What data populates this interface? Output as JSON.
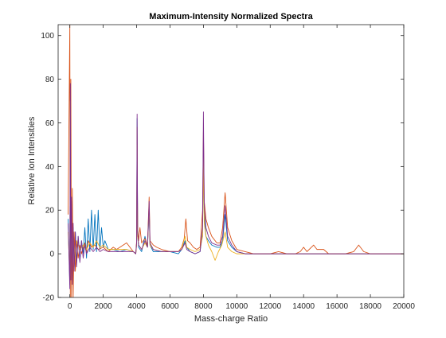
{
  "chart_data": {
    "type": "line",
    "title": "Maximum-Intensity Normalized Spectra",
    "xlabel": "Mass-charge Ratio",
    "ylabel": "Relative Ion Intensities",
    "xlim": [
      -700,
      20000
    ],
    "ylim": [
      -20,
      105
    ],
    "x_ticks": [
      0,
      2000,
      4000,
      6000,
      8000,
      10000,
      12000,
      14000,
      16000,
      18000,
      20000
    ],
    "y_ticks": [
      -20,
      0,
      20,
      40,
      60,
      80,
      100
    ],
    "grid": false,
    "legend": "none",
    "series": [
      {
        "color": "#0072BD",
        "points": [
          [
            -100,
            16
          ],
          [
            0,
            -14
          ],
          [
            30,
            75
          ],
          [
            60,
            -8
          ],
          [
            100,
            24
          ],
          [
            150,
            -12
          ],
          [
            200,
            12
          ],
          [
            260,
            -6
          ],
          [
            330,
            10
          ],
          [
            400,
            -4
          ],
          [
            500,
            8
          ],
          [
            600,
            -3
          ],
          [
            700,
            6
          ],
          [
            800,
            0
          ],
          [
            900,
            12
          ],
          [
            1000,
            -2
          ],
          [
            1100,
            16
          ],
          [
            1200,
            1
          ],
          [
            1300,
            20
          ],
          [
            1400,
            2
          ],
          [
            1500,
            18
          ],
          [
            1600,
            1
          ],
          [
            1700,
            20
          ],
          [
            1800,
            2
          ],
          [
            1900,
            12
          ],
          [
            2000,
            3
          ],
          [
            2100,
            6
          ],
          [
            2300,
            2
          ],
          [
            2600,
            2
          ],
          [
            3000,
            1
          ],
          [
            3400,
            2
          ],
          [
            3800,
            1
          ],
          [
            3950,
            0
          ],
          [
            4000,
            5
          ],
          [
            4030,
            62
          ],
          [
            4060,
            8
          ],
          [
            4120,
            3
          ],
          [
            4300,
            1
          ],
          [
            4500,
            8
          ],
          [
            4650,
            3
          ],
          [
            4750,
            20
          ],
          [
            4800,
            4
          ],
          [
            5000,
            1
          ],
          [
            5500,
            1
          ],
          [
            6000,
            1
          ],
          [
            6500,
            0
          ],
          [
            6700,
            2
          ],
          [
            6900,
            6
          ],
          [
            7000,
            3
          ],
          [
            7200,
            1
          ],
          [
            7500,
            0
          ],
          [
            7800,
            1
          ],
          [
            7950,
            10
          ],
          [
            8000,
            48
          ],
          [
            8050,
            18
          ],
          [
            8150,
            8
          ],
          [
            8300,
            6
          ],
          [
            8500,
            4
          ],
          [
            8800,
            3
          ],
          [
            9000,
            3
          ],
          [
            9150,
            6
          ],
          [
            9300,
            18
          ],
          [
            9450,
            6
          ],
          [
            9700,
            3
          ],
          [
            10000,
            1
          ],
          [
            10500,
            0
          ],
          [
            11000,
            0
          ],
          [
            12000,
            0
          ],
          [
            13000,
            0
          ],
          [
            14000,
            0
          ],
          [
            15000,
            0
          ],
          [
            16000,
            0
          ],
          [
            17000,
            0
          ],
          [
            18000,
            0
          ],
          [
            19000,
            0
          ],
          [
            20000,
            0
          ]
        ]
      },
      {
        "color": "#D95319",
        "points": [
          [
            -100,
            18
          ],
          [
            0,
            105
          ],
          [
            30,
            -20
          ],
          [
            60,
            80
          ],
          [
            100,
            -20
          ],
          [
            150,
            30
          ],
          [
            200,
            -20
          ],
          [
            260,
            10
          ],
          [
            330,
            -8
          ],
          [
            400,
            6
          ],
          [
            500,
            -2
          ],
          [
            600,
            4
          ],
          [
            700,
            0
          ],
          [
            800,
            3
          ],
          [
            900,
            5
          ],
          [
            1000,
            1
          ],
          [
            1100,
            6
          ],
          [
            1300,
            3
          ],
          [
            1500,
            4
          ],
          [
            1700,
            2
          ],
          [
            2000,
            3
          ],
          [
            2300,
            1
          ],
          [
            2600,
            3
          ],
          [
            2800,
            2
          ],
          [
            3000,
            3
          ],
          [
            3200,
            4
          ],
          [
            3400,
            5
          ],
          [
            3600,
            3
          ],
          [
            3800,
            1
          ],
          [
            3950,
            0
          ],
          [
            4000,
            6
          ],
          [
            4030,
            58
          ],
          [
            4060,
            12
          ],
          [
            4120,
            6
          ],
          [
            4200,
            12
          ],
          [
            4300,
            5
          ],
          [
            4500,
            7
          ],
          [
            4650,
            4
          ],
          [
            4750,
            26
          ],
          [
            4800,
            6
          ],
          [
            5000,
            4
          ],
          [
            5200,
            3
          ],
          [
            5500,
            2
          ],
          [
            6000,
            1
          ],
          [
            6500,
            1
          ],
          [
            6700,
            3
          ],
          [
            6850,
            7
          ],
          [
            6950,
            16
          ],
          [
            7050,
            6
          ],
          [
            7200,
            5
          ],
          [
            7400,
            3
          ],
          [
            7600,
            2
          ],
          [
            7800,
            3
          ],
          [
            7950,
            20
          ],
          [
            8000,
            56
          ],
          [
            8050,
            24
          ],
          [
            8150,
            16
          ],
          [
            8300,
            12
          ],
          [
            8500,
            8
          ],
          [
            8800,
            5
          ],
          [
            9000,
            5
          ],
          [
            9150,
            12
          ],
          [
            9300,
            28
          ],
          [
            9450,
            12
          ],
          [
            9700,
            6
          ],
          [
            10000,
            2
          ],
          [
            10500,
            1
          ],
          [
            11000,
            0
          ],
          [
            12000,
            0
          ],
          [
            12500,
            1
          ],
          [
            13000,
            0
          ],
          [
            13500,
            0
          ],
          [
            13800,
            1
          ],
          [
            14000,
            3
          ],
          [
            14200,
            1
          ],
          [
            14600,
            4
          ],
          [
            14800,
            2
          ],
          [
            15200,
            2
          ],
          [
            15500,
            0
          ],
          [
            16000,
            0
          ],
          [
            16500,
            0
          ],
          [
            17000,
            1
          ],
          [
            17300,
            4
          ],
          [
            17600,
            1
          ],
          [
            18000,
            0
          ],
          [
            19000,
            0
          ],
          [
            20000,
            0
          ]
        ]
      },
      {
        "color": "#EDB120",
        "points": [
          [
            -100,
            10
          ],
          [
            0,
            -10
          ],
          [
            30,
            70
          ],
          [
            60,
            -6
          ],
          [
            100,
            20
          ],
          [
            150,
            -8
          ],
          [
            200,
            8
          ],
          [
            300,
            -4
          ],
          [
            400,
            6
          ],
          [
            600,
            2
          ],
          [
            800,
            4
          ],
          [
            1000,
            2
          ],
          [
            1200,
            5
          ],
          [
            1400,
            3
          ],
          [
            1600,
            6
          ],
          [
            1800,
            3
          ],
          [
            2000,
            4
          ],
          [
            2300,
            2
          ],
          [
            2600,
            2
          ],
          [
            3000,
            2
          ],
          [
            3400,
            2
          ],
          [
            3800,
            1
          ],
          [
            3950,
            0
          ],
          [
            4000,
            4
          ],
          [
            4030,
            50
          ],
          [
            4060,
            8
          ],
          [
            4120,
            4
          ],
          [
            4300,
            2
          ],
          [
            4500,
            5
          ],
          [
            4650,
            3
          ],
          [
            4750,
            22
          ],
          [
            4800,
            4
          ],
          [
            5000,
            2
          ],
          [
            5500,
            1
          ],
          [
            6000,
            1
          ],
          [
            6500,
            1
          ],
          [
            6700,
            2
          ],
          [
            6900,
            8
          ],
          [
            7000,
            3
          ],
          [
            7200,
            2
          ],
          [
            7500,
            1
          ],
          [
            7800,
            2
          ],
          [
            7950,
            8
          ],
          [
            8000,
            44
          ],
          [
            8050,
            14
          ],
          [
            8150,
            8
          ],
          [
            8300,
            4
          ],
          [
            8500,
            1
          ],
          [
            8700,
            -3
          ],
          [
            8900,
            1
          ],
          [
            9100,
            4
          ],
          [
            9300,
            10
          ],
          [
            9450,
            3
          ],
          [
            9700,
            1
          ],
          [
            10000,
            0
          ],
          [
            11000,
            0
          ],
          [
            12000,
            0
          ],
          [
            14000,
            0
          ],
          [
            16000,
            0
          ],
          [
            18000,
            0
          ],
          [
            20000,
            0
          ]
        ]
      },
      {
        "color": "#7E2F8E",
        "points": [
          [
            -100,
            14
          ],
          [
            0,
            -16
          ],
          [
            30,
            78
          ],
          [
            60,
            -12
          ],
          [
            100,
            26
          ],
          [
            150,
            -14
          ],
          [
            200,
            14
          ],
          [
            260,
            -8
          ],
          [
            330,
            10
          ],
          [
            400,
            -6
          ],
          [
            500,
            8
          ],
          [
            600,
            -4
          ],
          [
            700,
            6
          ],
          [
            800,
            -2
          ],
          [
            900,
            4
          ],
          [
            1000,
            0
          ],
          [
            1200,
            3
          ],
          [
            1400,
            1
          ],
          [
            1600,
            3
          ],
          [
            1800,
            1
          ],
          [
            2000,
            2
          ],
          [
            2300,
            1
          ],
          [
            2600,
            1
          ],
          [
            3000,
            1
          ],
          [
            3400,
            1
          ],
          [
            3800,
            1
          ],
          [
            3950,
            0
          ],
          [
            4000,
            5
          ],
          [
            4030,
            64
          ],
          [
            4060,
            10
          ],
          [
            4120,
            4
          ],
          [
            4300,
            2
          ],
          [
            4500,
            6
          ],
          [
            4650,
            3
          ],
          [
            4750,
            24
          ],
          [
            4800,
            5
          ],
          [
            5000,
            2
          ],
          [
            5500,
            1
          ],
          [
            6000,
            1
          ],
          [
            6500,
            1
          ],
          [
            6700,
            2
          ],
          [
            6900,
            5
          ],
          [
            7000,
            2
          ],
          [
            7200,
            1
          ],
          [
            7500,
            0
          ],
          [
            7800,
            1
          ],
          [
            7950,
            12
          ],
          [
            8000,
            65
          ],
          [
            8050,
            22
          ],
          [
            8150,
            12
          ],
          [
            8300,
            8
          ],
          [
            8500,
            5
          ],
          [
            8800,
            4
          ],
          [
            9000,
            4
          ],
          [
            9150,
            8
          ],
          [
            9300,
            22
          ],
          [
            9450,
            8
          ],
          [
            9700,
            4
          ],
          [
            10000,
            1
          ],
          [
            10500,
            0
          ],
          [
            11000,
            0
          ],
          [
            12000,
            0
          ],
          [
            14000,
            0
          ],
          [
            16000,
            0
          ],
          [
            18000,
            0
          ],
          [
            20000,
            0
          ]
        ]
      }
    ]
  }
}
